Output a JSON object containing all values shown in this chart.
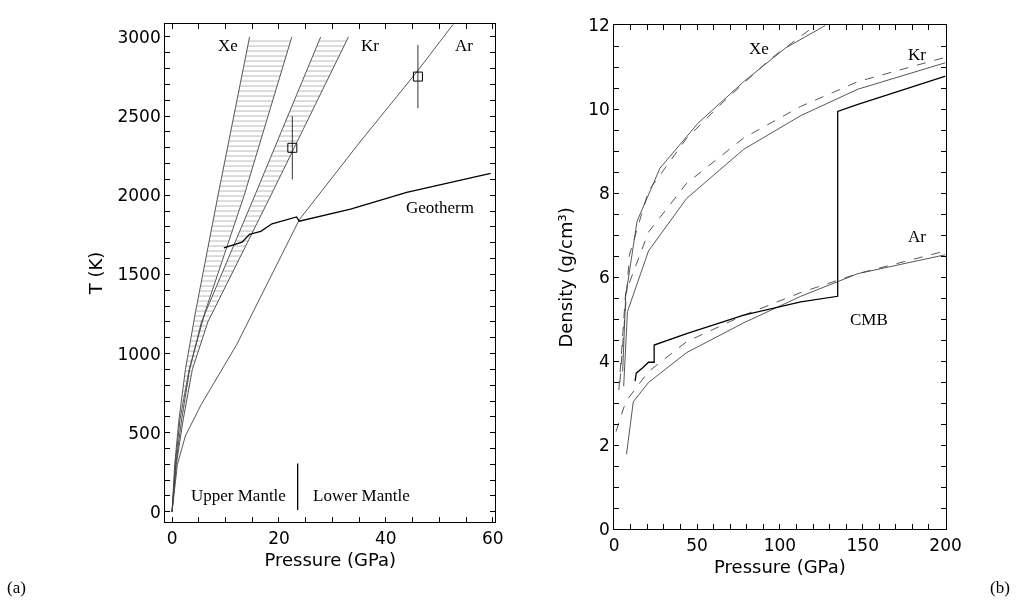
{
  "chart_data": [
    {
      "type": "line",
      "xlabel": "Pressure (GPa)",
      "ylabel": "T (K)",
      "xlim": [
        -1.3,
        60.5
      ],
      "ylim": [
        -67,
        3085
      ],
      "xticks": [
        0,
        {
          "value": 5,
          "label": null
        },
        {
          "value": 10,
          "label": null
        },
        {
          "value": 15,
          "label": null
        },
        20,
        {
          "value": 25,
          "label": null
        },
        {
          "value": 30,
          "label": null
        },
        {
          "value": 35,
          "label": null
        },
        40,
        {
          "value": 45,
          "label": null
        },
        {
          "value": 50,
          "label": null
        },
        {
          "value": 55,
          "label": null
        },
        60
      ],
      "yticks": [
        0,
        {
          "value": 100,
          "label": null
        },
        {
          "value": 200,
          "label": null
        },
        {
          "value": 300,
          "label": null
        },
        {
          "value": 400,
          "label": null
        },
        500,
        {
          "value": 600,
          "label": null
        },
        {
          "value": 700,
          "label": null
        },
        {
          "value": 800,
          "label": null
        },
        {
          "value": 900,
          "label": null
        },
        1000,
        {
          "value": 1100,
          "label": null
        },
        {
          "value": 1200,
          "label": null
        },
        {
          "value": 1300,
          "label": null
        },
        {
          "value": 1400,
          "label": null
        },
        1500,
        {
          "value": 1600,
          "label": null
        },
        {
          "value": 1700,
          "label": null
        },
        {
          "value": 1800,
          "label": null
        },
        {
          "value": 1900,
          "label": null
        },
        2000,
        {
          "value": 2100,
          "label": null
        },
        {
          "value": 2200,
          "label": null
        },
        {
          "value": 2300,
          "label": null
        },
        {
          "value": 2400,
          "label": null
        },
        2500,
        {
          "value": 2600,
          "label": null
        },
        {
          "value": 2700,
          "label": null
        },
        {
          "value": 2800,
          "label": null
        },
        {
          "value": 2900,
          "label": null
        },
        3000
      ],
      "series": [
        {
          "type": "line",
          "color": "#444444",
          "x": [
            0,
            0.5,
            1.3,
            2.5,
            4.4,
            8.6,
            14.5
          ],
          "values": [
            0,
            300,
            586,
            900,
            1265,
            2000,
            3000
          ]
        },
        {
          "type": "area",
          "color": "#444444",
          "x": [
            0,
            0.6,
            1.5,
            3.2,
            6.2,
            13.5,
            22.4
          ],
          "values": [
            0,
            300,
            586,
            900,
            1265,
            2000,
            3000
          ]
        },
        {
          "type": "line",
          "color": "#444444",
          "x": [
            0,
            0.7,
            1.8,
            3.3,
            5.5,
            15.5,
            27.8
          ],
          "values": [
            0,
            300,
            586,
            900,
            1200,
            2000,
            3000
          ]
        },
        {
          "type": "area",
          "color": "#444444",
          "x": [
            0,
            0.8,
            2.1,
            3.8,
            6.7,
            18.5,
            33
          ],
          "values": [
            0,
            300,
            586,
            900,
            1200,
            2000,
            3000
          ]
        },
        {
          "type": "line",
          "color": "#444444",
          "x": [
            0,
            1,
            2.5,
            5.45,
            12.1,
            23.8,
            35,
            45.8,
            52.6
          ],
          "values": [
            0,
            300,
            480,
            678,
            1057,
            1845,
            2330,
            2780,
            3080
          ]
        },
        {
          "type": "line",
          "color": "#000000",
          "x": [
            9.7,
            13.1,
            14.5,
            16.6,
            18.7,
            23.3,
            23.8,
            33.4,
            43.9,
            59.6
          ],
          "values": [
            1668,
            1704,
            1753,
            1772,
            1820,
            1863,
            1836,
            1912,
            2019,
            2138
          ]
        },
        {
          "type": "line",
          "color": "#000000",
          "x": [
            23.5,
            23.5
          ],
          "values": [
            12,
            305
          ]
        },
        {
          "type": "scatter",
          "color": "#000000",
          "marker": "square",
          "x": [
            22.5,
            46
          ],
          "values": [
            2300,
            2750
          ],
          "errors": [
            200,
            200
          ]
        }
      ],
      "annotations": [
        "Xe",
        "Kr",
        "Ar",
        "Geotherm",
        "Upper Mantle",
        "Lower Mantle",
        "(a)"
      ]
    },
    {
      "type": "line",
      "xlabel": "Pressure (GPa)",
      "ylabel": "Density (g/cm³)",
      "xlim": [
        0,
        200
      ],
      "ylim": [
        0,
        12
      ],
      "xticks": [
        0,
        {
          "value": 10,
          "label": null
        },
        {
          "value": 20,
          "label": null
        },
        {
          "value": 30,
          "label": null
        },
        {
          "value": 40,
          "label": null
        },
        50,
        {
          "value": 60,
          "label": null
        },
        {
          "value": 70,
          "label": null
        },
        {
          "value": 80,
          "label": null
        },
        {
          "value": 90,
          "label": null
        },
        100,
        {
          "value": 110,
          "label": null
        },
        {
          "value": 120,
          "label": null
        },
        {
          "value": 130,
          "label": null
        },
        {
          "value": 140,
          "label": null
        },
        150,
        {
          "value": 160,
          "label": null
        },
        {
          "value": 170,
          "label": null
        },
        {
          "value": 180,
          "label": null
        },
        {
          "value": 190,
          "label": null
        },
        200
      ],
      "yticks": [
        0,
        {
          "value": 0.5,
          "label": null
        },
        {
          "value": 1,
          "label": null
        },
        {
          "value": 1.5,
          "label": null
        },
        2,
        {
          "value": 2.5,
          "label": null
        },
        {
          "value": 3,
          "label": null
        },
        {
          "value": 3.5,
          "label": null
        },
        4,
        {
          "value": 4.5,
          "label": null
        },
        {
          "value": 5,
          "label": null
        },
        {
          "value": 5.5,
          "label": null
        },
        6,
        {
          "value": 6.5,
          "label": null
        },
        {
          "value": 7,
          "label": null
        },
        {
          "value": 7.5,
          "label": null
        },
        8,
        {
          "value": 8.5,
          "label": null
        },
        {
          "value": 9,
          "label": null
        },
        {
          "value": 9.5,
          "label": null
        },
        10,
        {
          "value": 10.5,
          "label": null
        },
        {
          "value": 11,
          "label": null
        },
        {
          "value": 11.5,
          "label": null
        },
        12
      ],
      "series": [
        {
          "type": "line",
          "color": "#444444",
          "line_style": "solid",
          "x": [
            5.1,
            6.9,
            13.8,
            27.6,
            50.6,
            78.2,
            103.4,
            127.6
          ],
          "values": [
            3.76,
            5.55,
            7.34,
            8.6,
            9.67,
            10.66,
            11.46,
            12
          ]
        },
        {
          "type": "line",
          "color": "#444444",
          "line_style": "dashed",
          "x": [
            3.4,
            9.2,
            20.7,
            43.7,
            66.7,
            94.3,
            112.6,
            121.8
          ],
          "values": [
            3.5,
            6.54,
            8.06,
            9.31,
            10.21,
            11.2,
            11.74,
            12
          ]
        },
        {
          "type": "line",
          "color": "#444444",
          "line_style": "solid",
          "x": [
            5.7,
            8,
            20.7,
            43.7,
            78.2,
            112.6,
            147.1,
            200
          ],
          "values": [
            3.41,
            5.19,
            6.63,
            7.88,
            9.05,
            9.85,
            10.48,
            11.11
          ]
        },
        {
          "type": "line",
          "color": "#444444",
          "line_style": "dashed",
          "x": [
            2.8,
            6.9,
            20.7,
            43.7,
            78.2,
            112.6,
            147.1,
            200
          ],
          "values": [
            3.32,
            5.64,
            7.08,
            8.24,
            9.32,
            10.07,
            10.66,
            11.24
          ]
        },
        {
          "type": "line",
          "color": "#444444",
          "line_style": "solid",
          "x": [
            7.4,
            11.5,
            20.7,
            43.7,
            78.2,
            112.6,
            147.1,
            200
          ],
          "values": [
            1.79,
            3.04,
            3.5,
            4.21,
            4.92,
            5.55,
            6.09,
            6.54
          ]
        },
        {
          "type": "line",
          "color": "#444444",
          "line_style": "dashed",
          "x": [
            1.1,
            6.9,
            20.7,
            43.7,
            78.2,
            112.6,
            147.1,
            200
          ],
          "values": [
            2.33,
            3.04,
            3.76,
            4.47,
            5.1,
            5.64,
            6.09,
            6.63
          ]
        },
        {
          "type": "line",
          "color": "#000000",
          "line_style": "solid",
          "x": [
            12.6,
            13.3,
            17.2,
            20.7,
            24.1,
            24.1,
            43.7,
            78.2,
            112.6,
            134.9,
            134.9,
            147.1,
            200
          ],
          "values": [
            3.53,
            3.72,
            3.85,
            3.98,
            3.98,
            4.39,
            4.66,
            5.1,
            5.42,
            5.55,
            9.95,
            10.12,
            10.79
          ]
        }
      ],
      "annotations": [
        "Xe",
        "Kr",
        "Ar",
        "CMB",
        "(b)"
      ]
    }
  ]
}
